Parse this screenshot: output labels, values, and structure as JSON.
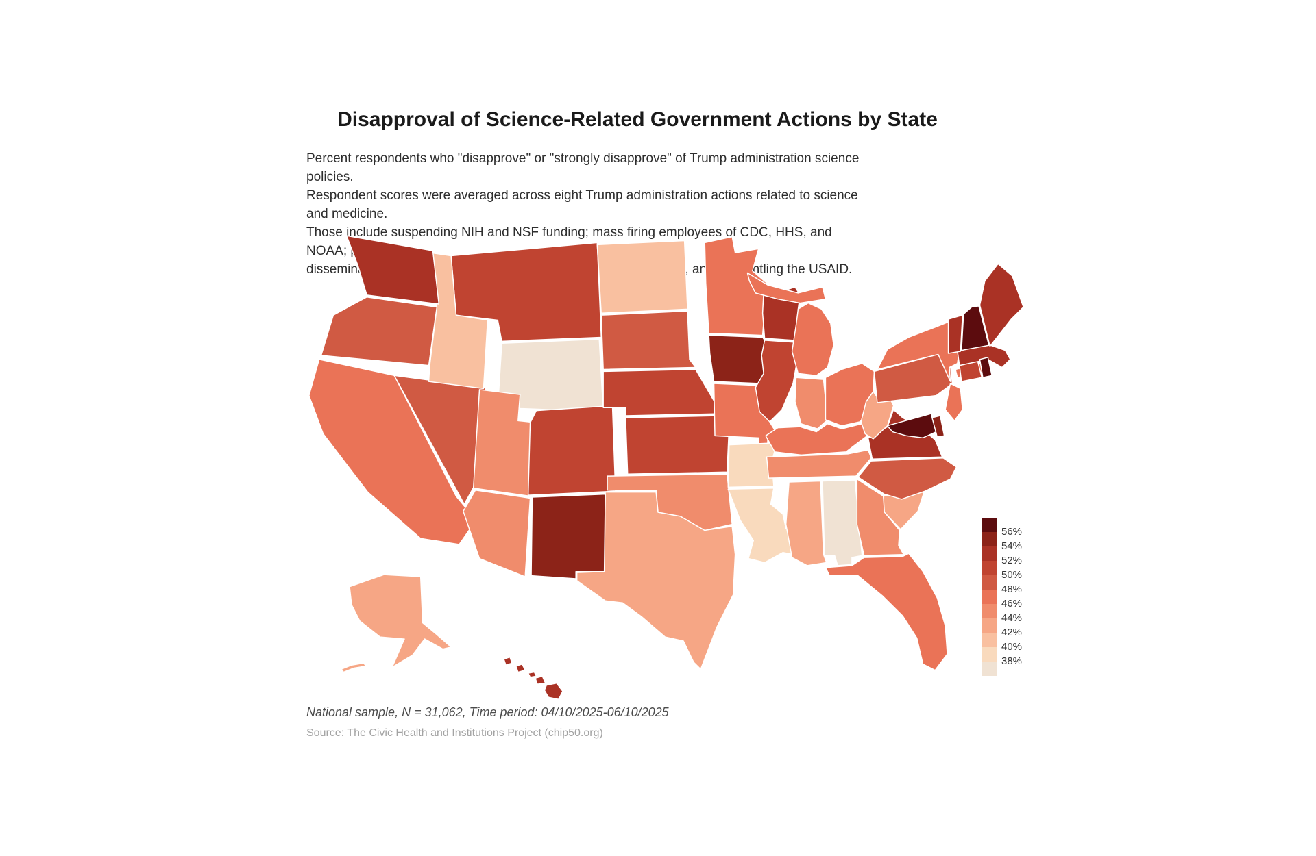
{
  "title": "Disapproval of Science-Related Government Actions by State",
  "subtitle_lines": [
    "Percent respondents who \"disapprove\" or \"strongly disapprove\" of Trump administration science policies.",
    "Respondent scores were averaged across eight Trump administration actions related to science and medicine.",
    "Those include suspending NIH and NSF funding; mass firing employees of CDC, HHS, and NOAA; pausing",
    "dissemination of health communication; deleting government data, and dismantling the USAID."
  ],
  "footer": {
    "sample_note": "National sample, N = 31,062, Time period: 04/10/2025-06/10/2025",
    "source": "Source: The Civic Health and Institutions Project (chip50.org)"
  },
  "legend": {
    "labels": [
      "56%",
      "54%",
      "52%",
      "50%",
      "48%",
      "46%",
      "44%",
      "42%",
      "40%",
      "38%"
    ],
    "thresholds": [
      56,
      54,
      52,
      50,
      48,
      46,
      44,
      42,
      40,
      38
    ],
    "colors_top_to_bottom": [
      "#5c0c0e",
      "#8c2318",
      "#aa3225",
      "#c04431",
      "#d05a43",
      "#ea7357",
      "#f08c6c",
      "#f6a685",
      "#f9c0a0",
      "#f9dabd",
      "#f0e2d3"
    ]
  },
  "chart_data": {
    "type": "choropleth",
    "geography": "United States, by state",
    "unit": "percent who disapprove or strongly disapprove",
    "title": "Disapproval of Science-Related Government Actions by State",
    "legend_range": [
      38,
      56
    ],
    "states": [
      {
        "abbr": "AL",
        "name": "Alabama",
        "value": 37.5
      },
      {
        "abbr": "AK",
        "name": "Alaska",
        "value": 43
      },
      {
        "abbr": "AZ",
        "name": "Arizona",
        "value": 45.5
      },
      {
        "abbr": "AR",
        "name": "Arkansas",
        "value": 39.5
      },
      {
        "abbr": "CA",
        "name": "California",
        "value": 47
      },
      {
        "abbr": "CO",
        "name": "Colorado",
        "value": 51
      },
      {
        "abbr": "CT",
        "name": "Connecticut",
        "value": 51.5
      },
      {
        "abbr": "DE",
        "name": "Delaware",
        "value": 54.5
      },
      {
        "abbr": "FL",
        "name": "Florida",
        "value": 46
      },
      {
        "abbr": "GA",
        "name": "Georgia",
        "value": 44.5
      },
      {
        "abbr": "HI",
        "name": "Hawaii",
        "value": 52.5
      },
      {
        "abbr": "ID",
        "name": "Idaho",
        "value": 41.5
      },
      {
        "abbr": "IL",
        "name": "Illinois",
        "value": 51
      },
      {
        "abbr": "IN",
        "name": "Indiana",
        "value": 45
      },
      {
        "abbr": "IA",
        "name": "Iowa",
        "value": 55
      },
      {
        "abbr": "KS",
        "name": "Kansas",
        "value": 50.5
      },
      {
        "abbr": "KY",
        "name": "Kentucky",
        "value": 46.5
      },
      {
        "abbr": "LA",
        "name": "Louisiana",
        "value": 39.5
      },
      {
        "abbr": "ME",
        "name": "Maine",
        "value": 52.5
      },
      {
        "abbr": "MD",
        "name": "Maryland",
        "value": 57
      },
      {
        "abbr": "MA",
        "name": "Massachusetts",
        "value": 53.5
      },
      {
        "abbr": "MI",
        "name": "Michigan",
        "value": 47
      },
      {
        "abbr": "MN",
        "name": "Minnesota",
        "value": 47.5
      },
      {
        "abbr": "MS",
        "name": "Mississippi",
        "value": 42.5
      },
      {
        "abbr": "MO",
        "name": "Missouri",
        "value": 46.5
      },
      {
        "abbr": "MT",
        "name": "Montana",
        "value": 51
      },
      {
        "abbr": "NE",
        "name": "Nebraska",
        "value": 50.5
      },
      {
        "abbr": "NV",
        "name": "Nevada",
        "value": 49
      },
      {
        "abbr": "NH",
        "name": "New Hampshire",
        "value": 56.5
      },
      {
        "abbr": "NJ",
        "name": "New Jersey",
        "value": 46.5
      },
      {
        "abbr": "NM",
        "name": "New Mexico",
        "value": 55
      },
      {
        "abbr": "NY",
        "name": "New York",
        "value": 47.5
      },
      {
        "abbr": "NC",
        "name": "North Carolina",
        "value": 49
      },
      {
        "abbr": "ND",
        "name": "North Dakota",
        "value": 41.5
      },
      {
        "abbr": "OH",
        "name": "Ohio",
        "value": 47
      },
      {
        "abbr": "OK",
        "name": "Oklahoma",
        "value": 44.5
      },
      {
        "abbr": "OR",
        "name": "Oregon",
        "value": 49
      },
      {
        "abbr": "PA",
        "name": "Pennsylvania",
        "value": 49
      },
      {
        "abbr": "RI",
        "name": "Rhode Island",
        "value": 56
      },
      {
        "abbr": "SC",
        "name": "South Carolina",
        "value": 42.5
      },
      {
        "abbr": "SD",
        "name": "South Dakota",
        "value": 48.5
      },
      {
        "abbr": "TN",
        "name": "Tennessee",
        "value": 44
      },
      {
        "abbr": "TX",
        "name": "Texas",
        "value": 42.5
      },
      {
        "abbr": "UT",
        "name": "Utah",
        "value": 45.5
      },
      {
        "abbr": "VT",
        "name": "Vermont",
        "value": 53
      },
      {
        "abbr": "VA",
        "name": "Virginia",
        "value": 53
      },
      {
        "abbr": "WA",
        "name": "Washington",
        "value": 53
      },
      {
        "abbr": "WV",
        "name": "West Virginia",
        "value": 43.5
      },
      {
        "abbr": "WI",
        "name": "Wisconsin",
        "value": 52.5
      },
      {
        "abbr": "WY",
        "name": "Wyoming",
        "value": 37.5
      }
    ]
  }
}
